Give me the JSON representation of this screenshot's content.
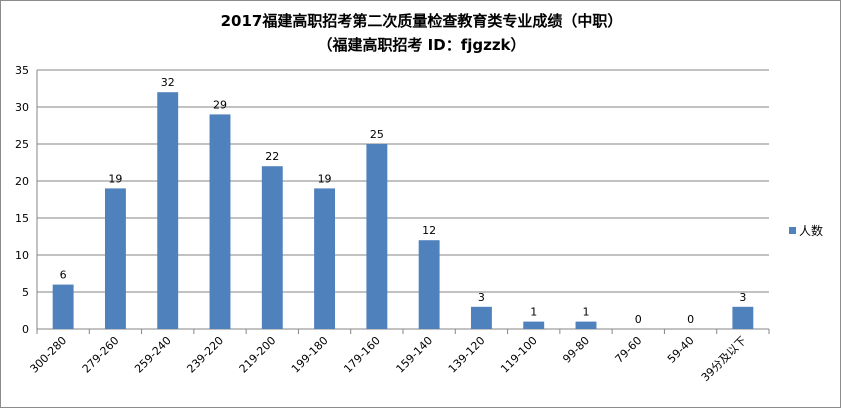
{
  "chart_data": {
    "type": "bar",
    "title": "2017福建高职招考第二次质量检查教育类专业成绩（中职）",
    "subtitle": "（福建高职招考  ID：fjgzzk）",
    "categories": [
      "300-280",
      "279-260",
      "259-240",
      "239-220",
      "219-200",
      "199-180",
      "179-160",
      "159-140",
      "139-120",
      "119-100",
      "99-80",
      "79-60",
      "59-40",
      "39分及以下"
    ],
    "series": [
      {
        "name": "人数",
        "values": [
          6,
          19,
          32,
          29,
          22,
          19,
          25,
          12,
          3,
          1,
          1,
          0,
          0,
          3
        ]
      }
    ],
    "ylim": [
      0,
      35
    ],
    "yticks": [
      0,
      5,
      10,
      15,
      20,
      25,
      30,
      35
    ],
    "xlabel": "",
    "ylabel": "",
    "grid": true,
    "legend": "right",
    "bar_color": "#4f81bd",
    "grid_color": "#868686"
  }
}
